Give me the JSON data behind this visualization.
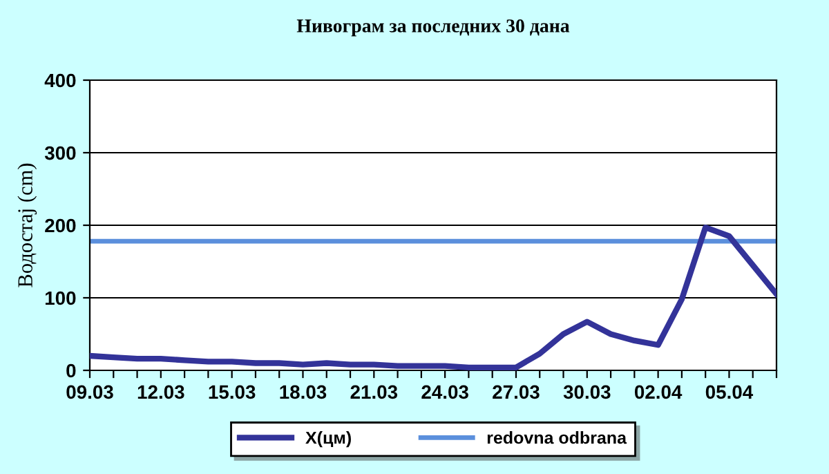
{
  "chart_data": {
    "type": "line",
    "title": "Нивограм за последних 30 дана",
    "ylabel": "Водостај (cm)",
    "categories": [
      "09.03",
      null,
      null,
      "12.03",
      null,
      null,
      "15.03",
      null,
      null,
      "18.03",
      null,
      null,
      "21.03",
      null,
      null,
      "24.03",
      null,
      null,
      "27.03",
      null,
      null,
      "30.03",
      null,
      null,
      "02.04",
      null,
      null,
      "05.04",
      null,
      null
    ],
    "series": [
      {
        "name": "X(цм)",
        "color": "#333399",
        "values": [
          20,
          18,
          16,
          16,
          14,
          12,
          12,
          10,
          10,
          8,
          10,
          8,
          8,
          6,
          6,
          6,
          4,
          4,
          4,
          23,
          50,
          67,
          50,
          41,
          35,
          98,
          197,
          185,
          145,
          105
        ]
      }
    ],
    "ref_lines": [
      {
        "axis": "y",
        "value": 178,
        "label": "redovna odbrana",
        "color": "#5b8fdc"
      }
    ],
    "ylim": [
      0,
      400
    ],
    "yticks": [
      0,
      100,
      200,
      300,
      400
    ],
    "grid": "y",
    "legend": "bottom",
    "marker": "none",
    "line_style": "solid"
  }
}
